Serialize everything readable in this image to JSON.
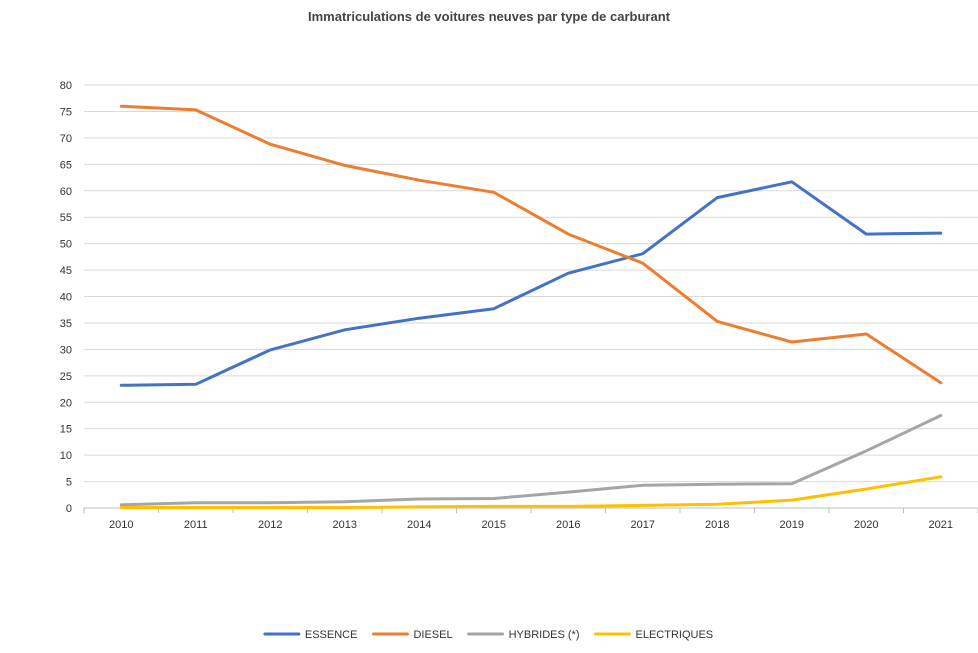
{
  "chart_data": {
    "type": "line",
    "title": "Immatriculations de voitures neuves par type de carburant",
    "x": [
      "2010",
      "2011",
      "2012",
      "2013",
      "2014",
      "2015",
      "2016",
      "2017",
      "2018",
      "2019",
      "2020",
      "2021"
    ],
    "ylim": [
      0,
      80
    ],
    "yticks": [
      0,
      5,
      10,
      15,
      20,
      25,
      30,
      35,
      40,
      45,
      50,
      55,
      60,
      65,
      70,
      75,
      80
    ],
    "grid": true,
    "legend_position": "bottom",
    "series": [
      {
        "name": "ESSENCE",
        "color": "#4472C4",
        "values": [
          23.2,
          23.4,
          29.9,
          33.7,
          35.9,
          37.7,
          44.4,
          48.1,
          58.7,
          61.7,
          51.8,
          52.0
        ]
      },
      {
        "name": "DIESEL",
        "color": "#ED7D31",
        "values": [
          76.0,
          75.3,
          68.8,
          64.8,
          62.0,
          59.7,
          51.8,
          46.3,
          35.3,
          31.4,
          32.9,
          23.7
        ]
      },
      {
        "name": "HYBRIDES (*)",
        "color": "#A5A5A5",
        "values": [
          0.6,
          1.0,
          1.0,
          1.2,
          1.7,
          1.8,
          3.0,
          4.3,
          4.5,
          4.6,
          10.8,
          17.5
        ]
      },
      {
        "name": "ELECTRIQUES",
        "color": "#FFC000",
        "values": [
          0.1,
          0.1,
          0.1,
          0.1,
          0.2,
          0.3,
          0.3,
          0.5,
          0.7,
          1.5,
          3.6,
          5.9
        ]
      }
    ]
  }
}
